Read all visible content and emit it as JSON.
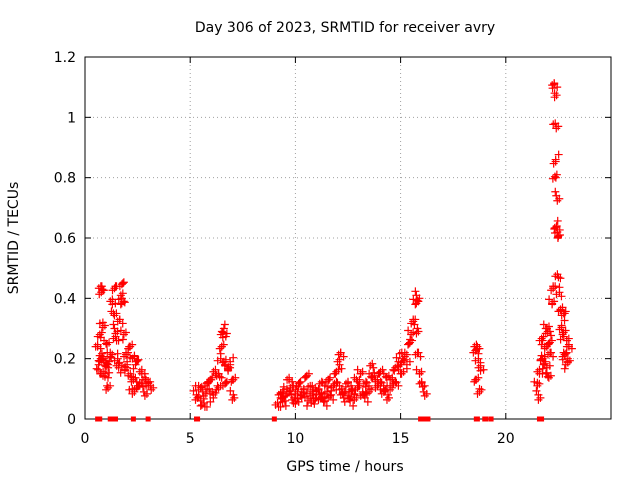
{
  "chart_data": {
    "type": "scatter",
    "title": "Day 306 of 2023, SRMTID for receiver avry",
    "xlabel": "GPS time / hours",
    "ylabel": "SRMTID / TECUs",
    "xlim": [
      0,
      25
    ],
    "ylim": [
      0,
      1.2
    ],
    "xticks": [
      0,
      5,
      10,
      15,
      20
    ],
    "xtick_labels": [
      "0",
      "5",
      "10",
      "15",
      "20"
    ],
    "yticks": [
      0,
      0.2,
      0.4,
      0.6,
      0.8,
      1.0,
      1.2
    ],
    "ytick_labels": [
      "0",
      "0.2",
      "0.4",
      "0.6",
      "0.8",
      "1",
      "1.2"
    ],
    "grid": true,
    "marker": "+",
    "color": "#ff0000",
    "zero_points": [
      0.6,
      0.65,
      0.7,
      1.2,
      1.3,
      1.45,
      2.3,
      3.0,
      5.3,
      5.35,
      9.0,
      15.95,
      16.0,
      16.05,
      16.1,
      16.15,
      16.2,
      16.3,
      18.6,
      18.65,
      19.0,
      19.05,
      19.3,
      21.6,
      21.7
    ],
    "series": [
      {
        "name": "SRMTID",
        "points": [
          [
            0.6,
            0.24
          ],
          [
            0.65,
            0.18
          ],
          [
            0.7,
            0.21
          ],
          [
            0.72,
            0.15
          ],
          [
            0.75,
            0.27
          ],
          [
            0.8,
            0.44
          ],
          [
            0.82,
            0.43
          ],
          [
            0.85,
            0.32
          ],
          [
            0.9,
            0.2
          ],
          [
            0.95,
            0.14
          ],
          [
            1.0,
            0.25
          ],
          [
            1.05,
            0.11
          ],
          [
            1.1,
            0.17
          ],
          [
            1.15,
            0.19
          ],
          [
            1.2,
            0.22
          ],
          [
            1.3,
            0.38
          ],
          [
            1.35,
            0.35
          ],
          [
            1.4,
            0.3
          ],
          [
            1.45,
            0.44
          ],
          [
            1.5,
            0.26
          ],
          [
            1.55,
            0.2
          ],
          [
            1.6,
            0.17
          ],
          [
            1.65,
            0.33
          ],
          [
            1.7,
            0.38
          ],
          [
            1.75,
            0.4
          ],
          [
            1.8,
            0.45
          ],
          [
            1.85,
            0.28
          ],
          [
            1.9,
            0.16
          ],
          [
            1.95,
            0.22
          ],
          [
            2.0,
            0.19
          ],
          [
            2.1,
            0.24
          ],
          [
            2.2,
            0.14
          ],
          [
            2.25,
            0.1
          ],
          [
            2.3,
            0.13
          ],
          [
            2.35,
            0.21
          ],
          [
            2.4,
            0.18
          ],
          [
            2.5,
            0.11
          ],
          [
            2.6,
            0.12
          ],
          [
            2.7,
            0.15
          ],
          [
            2.8,
            0.09
          ],
          [
            2.9,
            0.13
          ],
          [
            3.0,
            0.12
          ],
          [
            3.1,
            0.11
          ],
          [
            5.3,
            0.08
          ],
          [
            5.4,
            0.11
          ],
          [
            5.5,
            0.06
          ],
          [
            5.6,
            0.09
          ],
          [
            5.7,
            0.04
          ],
          [
            5.8,
            0.12
          ],
          [
            5.9,
            0.1
          ],
          [
            6.0,
            0.13
          ],
          [
            6.1,
            0.07
          ],
          [
            6.2,
            0.15
          ],
          [
            6.3,
            0.11
          ],
          [
            6.4,
            0.14
          ],
          [
            6.45,
            0.2
          ],
          [
            6.5,
            0.24
          ],
          [
            6.55,
            0.27
          ],
          [
            6.6,
            0.3
          ],
          [
            6.65,
            0.18
          ],
          [
            6.7,
            0.12
          ],
          [
            6.8,
            0.16
          ],
          [
            6.9,
            0.19
          ],
          [
            7.0,
            0.13
          ],
          [
            7.05,
            0.08
          ],
          [
            9.2,
            0.04
          ],
          [
            9.3,
            0.07
          ],
          [
            9.4,
            0.09
          ],
          [
            9.5,
            0.06
          ],
          [
            9.6,
            0.1
          ],
          [
            9.7,
            0.13
          ],
          [
            9.8,
            0.08
          ],
          [
            9.9,
            0.11
          ],
          [
            10.0,
            0.05
          ],
          [
            10.1,
            0.09
          ],
          [
            10.2,
            0.12
          ],
          [
            10.3,
            0.07
          ],
          [
            10.4,
            0.1
          ],
          [
            10.5,
            0.14
          ],
          [
            10.6,
            0.06
          ],
          [
            10.7,
            0.09
          ],
          [
            10.8,
            0.11
          ],
          [
            10.9,
            0.05
          ],
          [
            11.0,
            0.08
          ],
          [
            11.1,
            0.1
          ],
          [
            11.2,
            0.07
          ],
          [
            11.3,
            0.12
          ],
          [
            11.4,
            0.06
          ],
          [
            11.5,
            0.09
          ],
          [
            11.6,
            0.13
          ],
          [
            11.7,
            0.08
          ],
          [
            11.8,
            0.11
          ],
          [
            11.9,
            0.15
          ],
          [
            12.0,
            0.12
          ],
          [
            12.1,
            0.18
          ],
          [
            12.15,
            0.22
          ],
          [
            12.2,
            0.1
          ],
          [
            12.3,
            0.07
          ],
          [
            12.4,
            0.09
          ],
          [
            12.5,
            0.12
          ],
          [
            12.6,
            0.06
          ],
          [
            12.7,
            0.1
          ],
          [
            12.8,
            0.08
          ],
          [
            12.9,
            0.13
          ],
          [
            13.0,
            0.11
          ],
          [
            13.1,
            0.15
          ],
          [
            13.2,
            0.09
          ],
          [
            13.3,
            0.07
          ],
          [
            13.4,
            0.12
          ],
          [
            13.5,
            0.1
          ],
          [
            13.6,
            0.14
          ],
          [
            13.7,
            0.17
          ],
          [
            13.8,
            0.13
          ],
          [
            13.9,
            0.11
          ],
          [
            14.0,
            0.15
          ],
          [
            14.1,
            0.12
          ],
          [
            14.2,
            0.1
          ],
          [
            14.3,
            0.14
          ],
          [
            14.4,
            0.08
          ],
          [
            14.5,
            0.11
          ],
          [
            14.6,
            0.13
          ],
          [
            14.7,
            0.16
          ],
          [
            14.8,
            0.12
          ],
          [
            14.9,
            0.19
          ],
          [
            15.0,
            0.15
          ],
          [
            15.1,
            0.2
          ],
          [
            15.2,
            0.22
          ],
          [
            15.3,
            0.18
          ],
          [
            15.4,
            0.25
          ],
          [
            15.5,
            0.28
          ],
          [
            15.6,
            0.33
          ],
          [
            15.7,
            0.38
          ],
          [
            15.75,
            0.41
          ],
          [
            15.8,
            0.3
          ],
          [
            15.85,
            0.22
          ],
          [
            15.9,
            0.15
          ],
          [
            16.0,
            0.12
          ],
          [
            16.1,
            0.09
          ],
          [
            18.55,
            0.13
          ],
          [
            18.6,
            0.23
          ],
          [
            18.65,
            0.24
          ],
          [
            18.7,
            0.2
          ],
          [
            18.75,
            0.1
          ],
          [
            18.8,
            0.16
          ],
          [
            21.5,
            0.12
          ],
          [
            21.55,
            0.08
          ],
          [
            21.6,
            0.15
          ],
          [
            21.7,
            0.21
          ],
          [
            21.75,
            0.26
          ],
          [
            21.8,
            0.18
          ],
          [
            21.85,
            0.24
          ],
          [
            21.9,
            0.3
          ],
          [
            21.95,
            0.17
          ],
          [
            22.0,
            0.14
          ],
          [
            22.05,
            0.25
          ],
          [
            22.1,
            0.29
          ],
          [
            22.15,
            0.22
          ],
          [
            22.2,
            0.38
          ],
          [
            22.25,
            0.44
          ],
          [
            22.3,
            1.11
          ],
          [
            22.32,
            1.08
          ],
          [
            22.35,
            0.98
          ],
          [
            22.37,
            0.86
          ],
          [
            22.38,
            0.8
          ],
          [
            22.4,
            0.74
          ],
          [
            22.42,
            0.64
          ],
          [
            22.45,
            0.62
          ],
          [
            22.48,
            0.6
          ],
          [
            22.5,
            0.47
          ],
          [
            22.55,
            0.42
          ],
          [
            22.6,
            0.36
          ],
          [
            22.65,
            0.31
          ],
          [
            22.7,
            0.28
          ],
          [
            22.75,
            0.22
          ],
          [
            22.8,
            0.35
          ],
          [
            22.85,
            0.18
          ],
          [
            22.9,
            0.26
          ],
          [
            22.95,
            0.2
          ],
          [
            23.0,
            0.24
          ]
        ]
      }
    ]
  }
}
